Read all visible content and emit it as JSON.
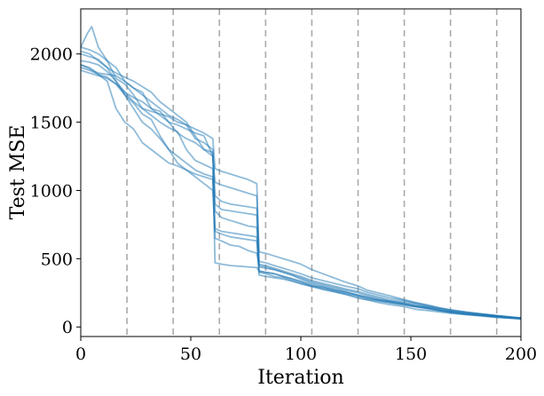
{
  "chart_data": {
    "type": "line",
    "xlabel": "Iteration",
    "ylabel": "Test MSE",
    "xlim": [
      0,
      200
    ],
    "ylim": [
      -70,
      2330
    ],
    "xticks": [
      0,
      50,
      100,
      150,
      200
    ],
    "yticks": [
      0,
      500,
      1000,
      1500,
      2000
    ],
    "vlines": [
      21,
      42,
      63,
      84,
      105,
      126,
      147,
      168,
      189
    ],
    "grid": false,
    "legend": "none",
    "line_color": "#1f77b4",
    "line_opacity": 0.5,
    "vline_color": "#aaaaaa",
    "series": [
      {
        "x": [
          0,
          3,
          5,
          8,
          12,
          16,
          20,
          24,
          28,
          32,
          36,
          40,
          44,
          48,
          52,
          56,
          60,
          61,
          64,
          68,
          72,
          76,
          80,
          81,
          84,
          88,
          92,
          96,
          100,
          105,
          110,
          115,
          120,
          126,
          130,
          135,
          140,
          147,
          152,
          158,
          163,
          168,
          175,
          182,
          189,
          195,
          200
        ],
        "values": [
          2050,
          2150,
          2200,
          2050,
          1950,
          1820,
          1780,
          1700,
          1600,
          1550,
          1500,
          1460,
          1430,
          1300,
          1220,
          1190,
          1160,
          470,
          460,
          450,
          445,
          440,
          435,
          410,
          400,
          390,
          370,
          350,
          330,
          300,
          280,
          260,
          240,
          210,
          200,
          180,
          165,
          150,
          130,
          120,
          110,
          100,
          90,
          80,
          70,
          65,
          62
        ]
      },
      {
        "x": [
          0,
          4,
          8,
          12,
          16,
          20,
          24,
          28,
          32,
          36,
          40,
          44,
          48,
          52,
          56,
          60,
          61,
          64,
          68,
          72,
          76,
          80,
          81,
          84,
          88,
          92,
          96,
          100,
          105,
          110,
          115,
          120,
          126,
          130,
          135,
          140,
          147,
          152,
          158,
          163,
          168,
          175,
          182,
          189,
          195,
          200
        ],
        "values": [
          1920,
          1890,
          1860,
          1850,
          1840,
          1800,
          1750,
          1720,
          1600,
          1580,
          1500,
          1420,
          1380,
          1350,
          1300,
          1280,
          960,
          920,
          900,
          890,
          880,
          870,
          440,
          430,
          420,
          400,
          380,
          350,
          320,
          300,
          280,
          260,
          230,
          220,
          200,
          190,
          170,
          150,
          140,
          120,
          110,
          95,
          85,
          75,
          68,
          62
        ]
      },
      {
        "x": [
          0,
          4,
          8,
          12,
          16,
          20,
          24,
          28,
          32,
          36,
          40,
          44,
          48,
          52,
          56,
          60,
          61,
          64,
          68,
          72,
          76,
          80,
          81,
          84,
          88,
          92,
          96,
          100,
          105,
          110,
          115,
          120,
          126,
          130,
          135,
          140,
          147,
          152,
          158,
          163,
          168,
          175,
          182,
          189,
          195,
          200
        ],
        "values": [
          1880,
          1860,
          1840,
          1820,
          1780,
          1700,
          1640,
          1560,
          1520,
          1400,
          1300,
          1250,
          1200,
          1150,
          1120,
          1100,
          650,
          630,
          600,
          590,
          560,
          540,
          450,
          440,
          420,
          400,
          380,
          360,
          330,
          310,
          290,
          270,
          250,
          230,
          210,
          190,
          175,
          160,
          145,
          130,
          115,
          100,
          90,
          80,
          72,
          66
        ]
      },
      {
        "x": [
          0,
          4,
          8,
          12,
          16,
          20,
          24,
          28,
          32,
          36,
          40,
          44,
          48,
          52,
          56,
          60,
          61,
          64,
          68,
          72,
          76,
          80,
          81,
          84,
          88,
          92,
          96,
          100,
          105,
          110,
          115,
          120,
          126,
          130,
          135,
          140,
          147,
          152,
          158,
          163,
          168,
          175,
          182,
          189,
          195,
          200
        ],
        "values": [
          2000,
          1980,
          1960,
          1900,
          1800,
          1700,
          1600,
          1500,
          1450,
          1380,
          1300,
          1200,
          1150,
          1100,
          1050,
          1000,
          700,
          680,
          660,
          650,
          640,
          630,
          400,
          390,
          370,
          360,
          340,
          320,
          300,
          290,
          270,
          250,
          230,
          210,
          195,
          180,
          165,
          150,
          135,
          120,
          105,
          92,
          82,
          72,
          64,
          58
        ]
      },
      {
        "x": [
          0,
          4,
          8,
          12,
          16,
          20,
          24,
          28,
          32,
          36,
          40,
          44,
          48,
          52,
          56,
          60,
          61,
          64,
          68,
          72,
          76,
          80,
          81,
          84,
          88,
          92,
          96,
          100,
          105,
          110,
          115,
          120,
          126,
          130,
          135,
          140,
          147,
          152,
          158,
          163,
          168,
          175,
          182,
          189,
          195,
          200
        ],
        "values": [
          1920,
          1900,
          1850,
          1800,
          1600,
          1500,
          1450,
          1350,
          1300,
          1250,
          1200,
          1180,
          1150,
          1120,
          1100,
          1080,
          850,
          800,
          780,
          760,
          740,
          730,
          460,
          450,
          430,
          410,
          390,
          370,
          340,
          320,
          300,
          280,
          260,
          240,
          220,
          200,
          185,
          170,
          150,
          135,
          120,
          105,
          95,
          82,
          72,
          65
        ]
      },
      {
        "x": [
          0,
          4,
          8,
          12,
          16,
          20,
          24,
          28,
          32,
          36,
          40,
          44,
          48,
          52,
          56,
          60,
          61,
          64,
          68,
          72,
          76,
          80,
          81,
          84,
          88,
          92,
          96,
          100,
          105,
          110,
          115,
          120,
          126,
          130,
          135,
          140,
          147,
          152,
          158,
          163,
          168,
          175,
          182,
          189,
          195,
          200
        ],
        "values": [
          1950,
          1940,
          1920,
          1870,
          1800,
          1720,
          1650,
          1600,
          1580,
          1560,
          1540,
          1500,
          1480,
          1380,
          1350,
          1300,
          720,
          700,
          690,
          680,
          670,
          660,
          410,
          400,
          390,
          370,
          355,
          335,
          310,
          290,
          270,
          255,
          235,
          215,
          200,
          185,
          170,
          155,
          140,
          125,
          112,
          98,
          88,
          76,
          68,
          60
        ]
      },
      {
        "x": [
          0,
          4,
          8,
          12,
          16,
          20,
          24,
          28,
          32,
          36,
          40,
          44,
          48,
          52,
          56,
          60,
          61,
          64,
          68,
          72,
          76,
          80,
          81,
          84,
          88,
          92,
          96,
          100,
          105,
          110,
          115,
          120,
          126,
          130,
          135,
          140,
          147,
          152,
          158,
          163,
          168,
          175,
          182,
          189,
          195,
          200
        ],
        "values": [
          2020,
          2000,
          1950,
          1900,
          1860,
          1830,
          1800,
          1760,
          1720,
          1650,
          1600,
          1550,
          1500,
          1400,
          1300,
          1250,
          900,
          860,
          850,
          840,
          830,
          820,
          380,
          370,
          360,
          350,
          335,
          315,
          295,
          275,
          258,
          240,
          220,
          200,
          190,
          178,
          160,
          148,
          132,
          120,
          108,
          95,
          85,
          75,
          67,
          60
        ]
      },
      {
        "x": [
          0,
          4,
          8,
          12,
          16,
          20,
          24,
          28,
          32,
          36,
          40,
          44,
          48,
          52,
          56,
          60,
          61,
          64,
          68,
          72,
          76,
          80,
          81,
          84,
          88,
          92,
          96,
          100,
          105,
          110,
          115,
          120,
          126,
          130,
          135,
          140,
          147,
          152,
          158,
          163,
          168,
          175,
          182,
          189,
          195,
          200
        ],
        "values": [
          1900,
          1880,
          1850,
          1830,
          1780,
          1720,
          1680,
          1650,
          1600,
          1550,
          1500,
          1480,
          1450,
          1420,
          1400,
          1250,
          1060,
          1040,
          1020,
          1000,
          980,
          960,
          550,
          540,
          520,
          500,
          480,
          460,
          420,
          390,
          360,
          330,
          300,
          270,
          250,
          230,
          200,
          180,
          160,
          140,
          125,
          110,
          96,
          84,
          74,
          66
        ]
      },
      {
        "x": [
          0,
          4,
          8,
          12,
          16,
          20,
          24,
          28,
          32,
          36,
          40,
          44,
          48,
          52,
          56,
          60,
          61,
          64,
          68,
          72,
          76,
          80,
          81,
          84,
          88,
          92,
          96,
          100,
          105,
          110,
          115,
          120,
          126,
          130,
          135,
          140,
          147,
          152,
          158,
          163,
          168,
          175,
          182,
          189,
          195,
          200
        ],
        "values": [
          2050,
          2030,
          2000,
          1950,
          1900,
          1800,
          1750,
          1700,
          1650,
          1600,
          1550,
          1520,
          1480,
          1450,
          1420,
          1380,
          1160,
          1140,
          1120,
          1100,
          1080,
          1050,
          480,
          470,
          450,
          430,
          410,
          390,
          360,
          340,
          320,
          300,
          280,
          255,
          235,
          215,
          195,
          175,
          155,
          140,
          125,
          108,
          95,
          82,
          72,
          64
        ]
      }
    ]
  }
}
